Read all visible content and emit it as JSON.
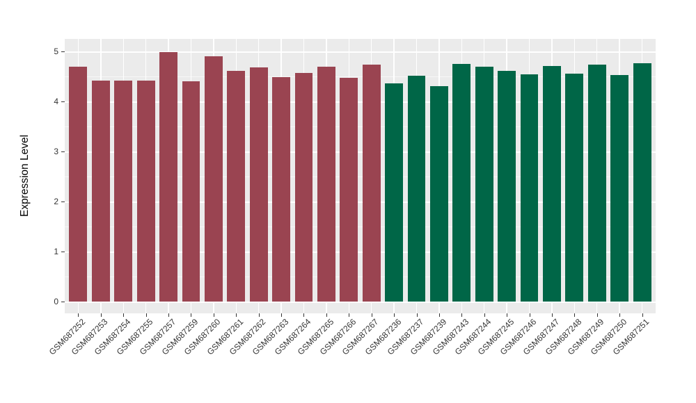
{
  "chart_data": {
    "type": "bar",
    "title": "",
    "xlabel": "",
    "ylabel": "Expression Level",
    "ylim": [
      0,
      5.25
    ],
    "yticks": [
      0,
      1,
      2,
      3,
      4,
      5
    ],
    "grid": true,
    "legend_position": "none",
    "panel_background": "#EBEBEB",
    "gridline_color": "#FFFFFF",
    "axis_text_color": "#333333",
    "group_colors": {
      "maroon": "#9A4451",
      "green": "#006647"
    },
    "bars": [
      {
        "label": "GSM687252",
        "value": 4.69,
        "group": "maroon"
      },
      {
        "label": "GSM687253",
        "value": 4.41,
        "group": "maroon"
      },
      {
        "label": "GSM687254",
        "value": 4.41,
        "group": "maroon"
      },
      {
        "label": "GSM687255",
        "value": 4.41,
        "group": "maroon"
      },
      {
        "label": "GSM687257",
        "value": 4.99,
        "group": "maroon"
      },
      {
        "label": "GSM687259",
        "value": 4.4,
        "group": "maroon"
      },
      {
        "label": "GSM687260",
        "value": 4.9,
        "group": "maroon"
      },
      {
        "label": "GSM687261",
        "value": 4.61,
        "group": "maroon"
      },
      {
        "label": "GSM687262",
        "value": 4.68,
        "group": "maroon"
      },
      {
        "label": "GSM687263",
        "value": 4.49,
        "group": "maroon"
      },
      {
        "label": "GSM687264",
        "value": 4.57,
        "group": "maroon"
      },
      {
        "label": "GSM687265",
        "value": 4.7,
        "group": "maroon"
      },
      {
        "label": "GSM687266",
        "value": 4.47,
        "group": "maroon"
      },
      {
        "label": "GSM687267",
        "value": 4.73,
        "group": "maroon"
      },
      {
        "label": "GSM687236",
        "value": 4.36,
        "group": "green"
      },
      {
        "label": "GSM687237",
        "value": 4.51,
        "group": "green"
      },
      {
        "label": "GSM687239",
        "value": 4.31,
        "group": "green"
      },
      {
        "label": "GSM687243",
        "value": 4.75,
        "group": "green"
      },
      {
        "label": "GSM687244",
        "value": 4.69,
        "group": "green"
      },
      {
        "label": "GSM687245",
        "value": 4.61,
        "group": "green"
      },
      {
        "label": "GSM687246",
        "value": 4.54,
        "group": "green"
      },
      {
        "label": "GSM687247",
        "value": 4.71,
        "group": "green"
      },
      {
        "label": "GSM687248",
        "value": 4.55,
        "group": "green"
      },
      {
        "label": "GSM687249",
        "value": 4.73,
        "group": "green"
      },
      {
        "label": "GSM687250",
        "value": 4.53,
        "group": "green"
      },
      {
        "label": "GSM687251",
        "value": 4.77,
        "group": "green"
      }
    ]
  }
}
